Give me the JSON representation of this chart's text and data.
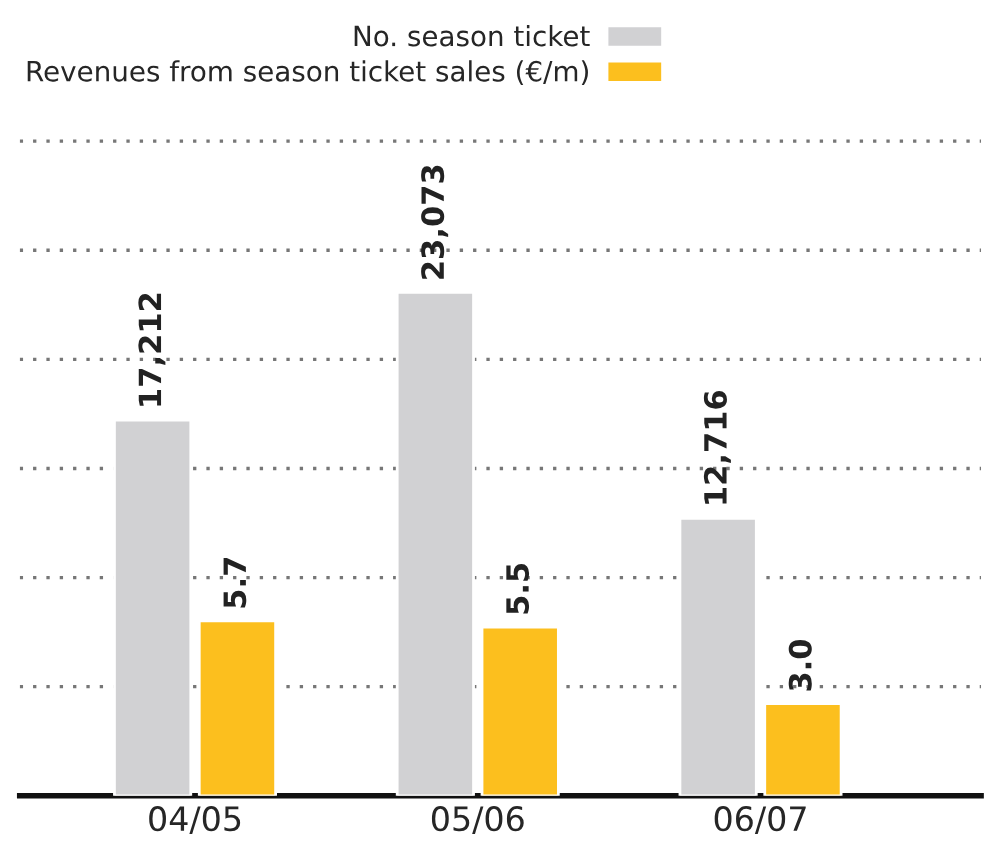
{
  "chart_data": {
    "type": "bar",
    "categories": [
      "04/05",
      "05/06",
      "06/07"
    ],
    "series": [
      {
        "name": "No. season ticket",
        "color": "#d1d1d3",
        "values": [
          17212,
          23073,
          12716
        ],
        "value_labels": [
          "17,212",
          "23,073",
          "12,716"
        ]
      },
      {
        "name": "Revenues from season ticket sales (€/m)",
        "color": "#fcbf1e",
        "values": [
          5.7,
          5.5,
          3.0
        ],
        "value_labels": [
          "5.7",
          "5.5",
          "3.0"
        ],
        "axis": "y2"
      }
    ],
    "grid": "y",
    "line_style": "dotted",
    "tick_labels": "x",
    "legend": "top left"
  }
}
